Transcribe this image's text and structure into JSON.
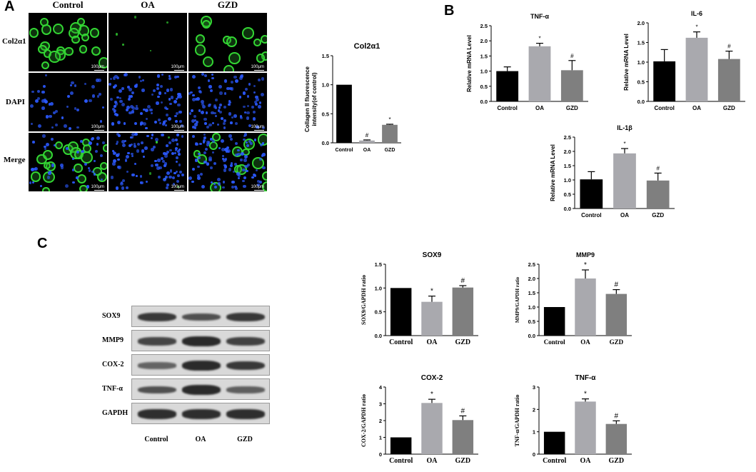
{
  "panels": {
    "A": "A",
    "B": "B",
    "C": "C"
  },
  "panel_a": {
    "columns": [
      "Control",
      "OA",
      "GZD"
    ],
    "rows": [
      "Col2α1",
      "DAPI",
      "Merge"
    ],
    "scale_label": "100μm"
  },
  "western_blot": {
    "proteins": [
      "SOX9",
      "MMP9",
      "COX-2",
      "TNF-α",
      "GAPDH"
    ],
    "groups": [
      "Control",
      "OA",
      "GZD"
    ],
    "band_intensity": [
      [
        0.85,
        0.6,
        0.85
      ],
      [
        0.7,
        1.0,
        0.75
      ],
      [
        0.4,
        1.0,
        0.85
      ],
      [
        0.6,
        1.0,
        0.45
      ],
      [
        0.95,
        0.95,
        0.95
      ]
    ]
  },
  "colors": {
    "control": "#000000",
    "oa": "#a9a9ae",
    "gzd": "#7f7f7f",
    "green": "#33d633",
    "blue": "#2b59ff"
  },
  "chart_data": [
    {
      "id": "col2a1",
      "type": "bar",
      "title": "Col2α1",
      "categories": [
        "Control",
        "OA",
        "GZD"
      ],
      "values": [
        1.0,
        0.04,
        0.31
      ],
      "errors": [
        0,
        0.01,
        0.01
      ],
      "annotations": [
        "",
        "#",
        "*"
      ],
      "ylabel": "Collagen II fluorescence\nintensity(of control)",
      "ylim": [
        0,
        1.5
      ],
      "yticks": [
        "0.0",
        "0.5",
        "1.0",
        "1.5"
      ],
      "tickvals": [
        0,
        0.5,
        1.0,
        1.5
      ]
    },
    {
      "id": "tnfa_mrna",
      "type": "bar",
      "title": "TNF-α",
      "categories": [
        "Control",
        "OA",
        "GZD"
      ],
      "values": [
        1.0,
        1.82,
        1.03
      ],
      "errors": [
        0.14,
        0.1,
        0.32
      ],
      "annotations": [
        "",
        "*",
        "#"
      ],
      "ylabel": "Relative mRNA Level",
      "ylim": [
        0,
        2.5
      ],
      "yticks": [
        "0.0",
        "0.5",
        "1.0",
        "1.5",
        "2.0",
        "2.5"
      ],
      "tickvals": [
        0,
        0.5,
        1.0,
        1.5,
        2.0,
        2.5
      ]
    },
    {
      "id": "il6_mrna",
      "type": "bar",
      "title": "IL-6",
      "categories": [
        "Control",
        "OA",
        "GZD"
      ],
      "values": [
        1.02,
        1.62,
        1.08
      ],
      "errors": [
        0.3,
        0.15,
        0.2
      ],
      "annotations": [
        "",
        "*",
        "#"
      ],
      "ylabel": "Relative mRNA Level",
      "ylim": [
        0,
        2.0
      ],
      "yticks": [
        "0.0",
        "0.5",
        "1.0",
        "1.5",
        "2.0"
      ],
      "tickvals": [
        0,
        0.5,
        1.0,
        1.5,
        2.0
      ]
    },
    {
      "id": "il1b_mrna",
      "type": "bar",
      "title": "IL-1β",
      "categories": [
        "Control",
        "OA",
        "GZD"
      ],
      "values": [
        1.02,
        1.93,
        0.98
      ],
      "errors": [
        0.27,
        0.17,
        0.26
      ],
      "annotations": [
        "",
        "*",
        "#"
      ],
      "ylabel": "Relative mRNA Level",
      "ylim": [
        0,
        2.5
      ],
      "yticks": [
        "0.0",
        "0.5",
        "1.0",
        "1.5",
        "2.0",
        "2.5"
      ],
      "tickvals": [
        0,
        0.5,
        1.0,
        1.5,
        2.0,
        2.5
      ]
    },
    {
      "id": "sox9_wb",
      "type": "bar",
      "title": "SOX9",
      "categories": [
        "Control",
        "OA",
        "GZD"
      ],
      "values": [
        1.0,
        0.71,
        1.01
      ],
      "errors": [
        0,
        0.12,
        0.04
      ],
      "annotations": [
        "",
        "*",
        "#"
      ],
      "ylabel": "SOX9/GAPDH ratio",
      "ylim": [
        0,
        1.5
      ],
      "yticks": [
        "0.0",
        "0.5",
        "1.0",
        "1.5"
      ],
      "tickvals": [
        0,
        0.5,
        1.0,
        1.5
      ]
    },
    {
      "id": "mmp9_wb",
      "type": "bar",
      "title": "MMP9",
      "categories": [
        "Control",
        "OA",
        "GZD"
      ],
      "values": [
        1.0,
        2.0,
        1.46
      ],
      "errors": [
        0,
        0.3,
        0.15
      ],
      "annotations": [
        "",
        "*",
        "#"
      ],
      "ylabel": "MMP9/GAPDH ratio",
      "ylim": [
        0,
        2.5
      ],
      "yticks": [
        "0.0",
        "0.5",
        "1.0",
        "1.5",
        "2.0",
        "2.5"
      ],
      "tickvals": [
        0,
        0.5,
        1.0,
        1.5,
        2.0,
        2.5
      ]
    },
    {
      "id": "cox2_wb",
      "type": "bar",
      "title": "COX-2",
      "categories": [
        "Control",
        "OA",
        "GZD"
      ],
      "values": [
        1.0,
        3.05,
        2.03
      ],
      "errors": [
        0,
        0.22,
        0.25
      ],
      "annotations": [
        "",
        "*",
        "#"
      ],
      "ylabel": "COX-2/GAPDH ratio",
      "ylim": [
        0,
        4
      ],
      "yticks": [
        "0",
        "1",
        "2",
        "3",
        "4"
      ],
      "tickvals": [
        0,
        1,
        2,
        3,
        4
      ]
    },
    {
      "id": "tnfa_wb",
      "type": "bar",
      "title": "TNF-α",
      "categories": [
        "Control",
        "OA",
        "GZD"
      ],
      "values": [
        1.0,
        2.35,
        1.35
      ],
      "errors": [
        0,
        0.12,
        0.14
      ],
      "annotations": [
        "",
        "*",
        "#"
      ],
      "ylabel": "TNF-α/GAPDH ratio",
      "ylim": [
        0,
        3
      ],
      "yticks": [
        "0",
        "1",
        "2",
        "3"
      ],
      "tickvals": [
        0,
        1,
        2,
        3
      ]
    }
  ]
}
